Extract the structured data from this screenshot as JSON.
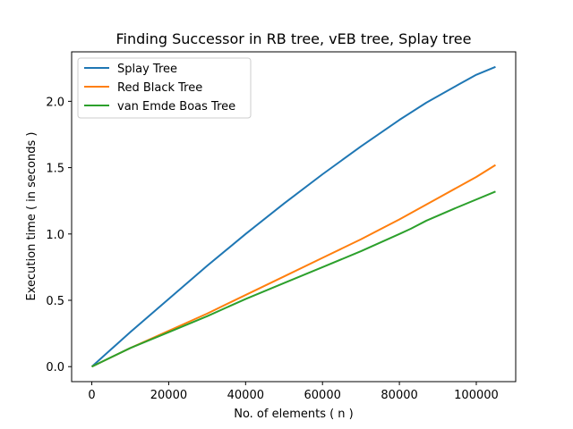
{
  "chart_data": {
    "type": "line",
    "title": "Finding Successor in RB tree, vEB tree, Splay tree",
    "xlabel": "No. of elements ( n )",
    "ylabel": "Execution time ( in seconds )",
    "xlim": [
      -5250,
      110250
    ],
    "ylim": [
      -0.113,
      2.373
    ],
    "xticks": [
      0,
      20000,
      40000,
      60000,
      80000,
      100000
    ],
    "xtick_labels": [
      "0",
      "20000",
      "40000",
      "60000",
      "80000",
      "100000"
    ],
    "yticks": [
      0.0,
      0.5,
      1.0,
      1.5,
      2.0
    ],
    "ytick_labels": [
      "0.0",
      "0.5",
      "1.0",
      "1.5",
      "2.0"
    ],
    "grid": false,
    "legend_position": "upper-left",
    "series": [
      {
        "name": "Splay Tree",
        "color": "#1f77b4",
        "x": [
          0,
          5000,
          10000,
          20000,
          30000,
          40000,
          50000,
          60000,
          70000,
          80000,
          87000,
          95000,
          100000,
          105000
        ],
        "y": [
          0.0,
          0.13,
          0.26,
          0.51,
          0.76,
          1.0,
          1.23,
          1.45,
          1.66,
          1.86,
          1.99,
          2.12,
          2.2,
          2.26
        ]
      },
      {
        "name": "Red Black Tree",
        "color": "#ff7f0e",
        "x": [
          0,
          10000,
          20000,
          30000,
          40000,
          50000,
          60000,
          70000,
          80000,
          90000,
          100000,
          105000
        ],
        "y": [
          0.0,
          0.14,
          0.27,
          0.4,
          0.54,
          0.68,
          0.82,
          0.96,
          1.11,
          1.27,
          1.43,
          1.52
        ]
      },
      {
        "name": "van Emde Boas Tree",
        "color": "#2ca02c",
        "x": [
          0,
          10000,
          20000,
          30000,
          40000,
          50000,
          60000,
          70000,
          80000,
          83000,
          87000,
          95000,
          105000
        ],
        "y": [
          0.0,
          0.14,
          0.26,
          0.38,
          0.51,
          0.63,
          0.75,
          0.87,
          1.0,
          1.04,
          1.1,
          1.2,
          1.32
        ]
      }
    ]
  }
}
